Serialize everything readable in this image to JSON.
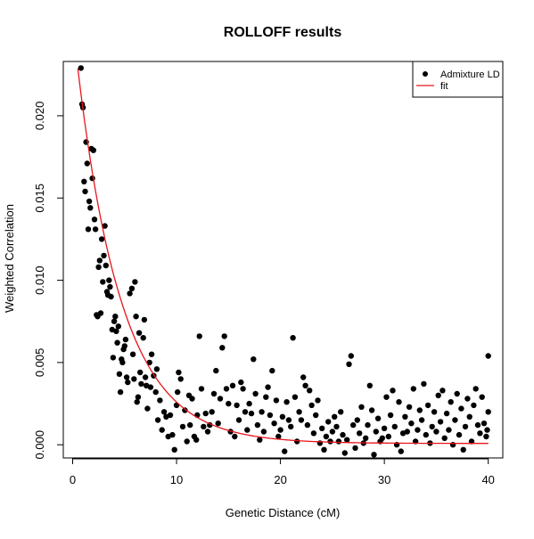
{
  "chart_data": {
    "type": "scatter",
    "title": "ROLLOFF results",
    "xlabel": "Genetic Distance (cM)",
    "ylabel": "Weighted Correlation",
    "xlim": [
      -0.9,
      41.4
    ],
    "ylim": [
      -0.0008,
      0.0233
    ],
    "x_ticks": [
      "0",
      "10",
      "20",
      "30",
      "40"
    ],
    "x_tick_values": [
      0,
      10,
      20,
      30,
      40
    ],
    "y_ticks": [
      "0.000",
      "0.005",
      "0.010",
      "0.015",
      "0.020"
    ],
    "y_tick_values": [
      0,
      0.005,
      0.01,
      0.015,
      0.02
    ],
    "grid": false,
    "legend_position": "top-right",
    "legend": [
      {
        "label": "Admixture LD",
        "marker": "point",
        "color": "#000000"
      },
      {
        "label": "fit",
        "marker": "line",
        "color": "#e8151b"
      }
    ],
    "fit": {
      "name": "fit",
      "color": "#e8151b",
      "model": "A*exp(-n*x/100)+c",
      "A": 0.0256,
      "n": 23.2,
      "c": 8e-05
    },
    "series": [
      {
        "name": "Admixture LD",
        "color": "#000000",
        "points": [
          [
            0.8,
            0.0229
          ],
          [
            0.9,
            0.0207
          ],
          [
            1.0,
            0.0205
          ],
          [
            1.1,
            0.016
          ],
          [
            1.2,
            0.0154
          ],
          [
            1.3,
            0.0184
          ],
          [
            1.4,
            0.0171
          ],
          [
            1.5,
            0.0131
          ],
          [
            1.6,
            0.0148
          ],
          [
            1.7,
            0.0144
          ],
          [
            1.8,
            0.018
          ],
          [
            1.9,
            0.0162
          ],
          [
            2.0,
            0.0179
          ],
          [
            2.1,
            0.0137
          ],
          [
            2.2,
            0.0131
          ],
          [
            2.3,
            0.0079
          ],
          [
            2.4,
            0.0078
          ],
          [
            2.5,
            0.0108
          ],
          [
            2.6,
            0.0112
          ],
          [
            2.7,
            0.008
          ],
          [
            2.8,
            0.0125
          ],
          [
            2.9,
            0.0099
          ],
          [
            3.0,
            0.0115
          ],
          [
            3.1,
            0.0133
          ],
          [
            3.2,
            0.0109
          ],
          [
            3.3,
            0.0093
          ],
          [
            3.4,
            0.0091
          ],
          [
            3.5,
            0.01
          ],
          [
            3.6,
            0.0096
          ],
          [
            3.7,
            0.009
          ],
          [
            3.8,
            0.007
          ],
          [
            3.9,
            0.0053
          ],
          [
            4.0,
            0.0075
          ],
          [
            4.1,
            0.0078
          ],
          [
            4.2,
            0.0069
          ],
          [
            4.3,
            0.0062
          ],
          [
            4.4,
            0.0072
          ],
          [
            4.5,
            0.0043
          ],
          [
            4.6,
            0.0032
          ],
          [
            4.7,
            0.0052
          ],
          [
            4.8,
            0.005
          ],
          [
            4.9,
            0.0058
          ],
          [
            5.0,
            0.006
          ],
          [
            5.1,
            0.0064
          ],
          [
            5.2,
            0.0041
          ],
          [
            5.3,
            0.0038
          ],
          [
            5.5,
            0.0092
          ],
          [
            5.7,
            0.0095
          ],
          [
            5.8,
            0.0055
          ],
          [
            5.9,
            0.004
          ],
          [
            6.0,
            0.0099
          ],
          [
            6.1,
            0.0078
          ],
          [
            6.2,
            0.0026
          ],
          [
            6.3,
            0.0029
          ],
          [
            6.4,
            0.0068
          ],
          [
            6.5,
            0.0044
          ],
          [
            6.6,
            0.0037
          ],
          [
            6.8,
            0.0065
          ],
          [
            6.9,
            0.0076
          ],
          [
            7.0,
            0.0041
          ],
          [
            7.1,
            0.0036
          ],
          [
            7.2,
            0.0022
          ],
          [
            7.4,
            0.005
          ],
          [
            7.5,
            0.0035
          ],
          [
            7.6,
            0.0055
          ],
          [
            7.8,
            0.0042
          ],
          [
            8.0,
            0.0032
          ],
          [
            8.1,
            0.0046
          ],
          [
            8.2,
            0.0015
          ],
          [
            8.4,
            0.0027
          ],
          [
            8.6,
            0.0009
          ],
          [
            8.8,
            0.002
          ],
          [
            9.0,
            0.0017
          ],
          [
            9.2,
            0.0005
          ],
          [
            9.4,
            0.0018
          ],
          [
            9.6,
            0.0006
          ],
          [
            9.8,
            -0.0003
          ],
          [
            10.0,
            0.0024
          ],
          [
            10.1,
            0.0032
          ],
          [
            10.2,
            0.0044
          ],
          [
            10.4,
            0.004
          ],
          [
            10.6,
            0.0011
          ],
          [
            10.8,
            0.0021
          ],
          [
            11.0,
            0.0002
          ],
          [
            11.2,
            0.003
          ],
          [
            11.3,
            0.0012
          ],
          [
            11.5,
            0.0028
          ],
          [
            11.7,
            0.0005
          ],
          [
            11.9,
            0.0003
          ],
          [
            12.0,
            0.0018
          ],
          [
            12.2,
            0.0066
          ],
          [
            12.4,
            0.0034
          ],
          [
            12.6,
            0.0011
          ],
          [
            12.8,
            0.0019
          ],
          [
            13.0,
            0.0008
          ],
          [
            13.2,
            0.0012
          ],
          [
            13.4,
            0.002
          ],
          [
            13.6,
            0.0031
          ],
          [
            13.8,
            0.0045
          ],
          [
            14.0,
            0.0013
          ],
          [
            14.2,
            0.0028
          ],
          [
            14.4,
            0.0059
          ],
          [
            14.6,
            0.0066
          ],
          [
            14.8,
            0.0034
          ],
          [
            15.0,
            0.0025
          ],
          [
            15.2,
            0.0008
          ],
          [
            15.4,
            0.0036
          ],
          [
            15.6,
            0.0005
          ],
          [
            15.8,
            0.0024
          ],
          [
            16.0,
            0.0015
          ],
          [
            16.2,
            0.0038
          ],
          [
            16.4,
            0.0034
          ],
          [
            16.6,
            0.002
          ],
          [
            16.8,
            0.0009
          ],
          [
            17.0,
            0.0025
          ],
          [
            17.2,
            0.0019
          ],
          [
            17.4,
            0.0052
          ],
          [
            17.6,
            0.0031
          ],
          [
            17.8,
            0.0012
          ],
          [
            18.0,
            0.0003
          ],
          [
            18.2,
            0.002
          ],
          [
            18.4,
            0.0008
          ],
          [
            18.6,
            0.0029
          ],
          [
            18.8,
            0.0035
          ],
          [
            19.0,
            0.0018
          ],
          [
            19.2,
            0.0045
          ],
          [
            19.4,
            0.0013
          ],
          [
            19.6,
            0.0027
          ],
          [
            19.8,
            0.0005
          ],
          [
            20.0,
            0.0009
          ],
          [
            20.2,
            0.0017
          ],
          [
            20.4,
            -0.0004
          ],
          [
            20.6,
            0.0026
          ],
          [
            20.8,
            0.0015
          ],
          [
            21.0,
            0.0011
          ],
          [
            21.2,
            0.0065
          ],
          [
            21.4,
            0.0029
          ],
          [
            21.6,
            0.0002
          ],
          [
            21.8,
            0.002
          ],
          [
            22.0,
            0.0015
          ],
          [
            22.2,
            0.0041
          ],
          [
            22.4,
            0.0036
          ],
          [
            22.6,
            0.0012
          ],
          [
            22.8,
            0.0033
          ],
          [
            23.0,
            0.0024
          ],
          [
            23.2,
            0.0007
          ],
          [
            23.4,
            0.0018
          ],
          [
            23.6,
            0.0027
          ],
          [
            23.8,
            0.0001
          ],
          [
            24.0,
            0.001
          ],
          [
            24.2,
            -0.0003
          ],
          [
            24.4,
            0.0005
          ],
          [
            24.6,
            0.0014
          ],
          [
            24.8,
            0.0002
          ],
          [
            25.0,
            0.0008
          ],
          [
            25.2,
            0.0017
          ],
          [
            25.4,
            0.0011
          ],
          [
            25.6,
            0.0002
          ],
          [
            25.8,
            0.002
          ],
          [
            26.0,
            0.0006
          ],
          [
            26.2,
            -0.0005
          ],
          [
            26.4,
            0.0003
          ],
          [
            26.6,
            0.0049
          ],
          [
            26.8,
            0.0054
          ],
          [
            27.0,
            0.0012
          ],
          [
            27.2,
            -0.0002
          ],
          [
            27.4,
            0.0015
          ],
          [
            27.6,
            0.0007
          ],
          [
            27.8,
            0.0023
          ],
          [
            28.0,
            0.0001
          ],
          [
            28.2,
            0.0004
          ],
          [
            28.4,
            0.0012
          ],
          [
            28.6,
            0.0036
          ],
          [
            28.8,
            0.0021
          ],
          [
            29.0,
            -0.0006
          ],
          [
            29.2,
            0.0008
          ],
          [
            29.4,
            0.0016
          ],
          [
            29.6,
            0.0002
          ],
          [
            29.8,
            0.0004
          ],
          [
            30.0,
            0.001
          ],
          [
            30.2,
            0.0029
          ],
          [
            30.4,
            0.0005
          ],
          [
            30.6,
            0.0018
          ],
          [
            30.8,
            0.0033
          ],
          [
            31.0,
            0.0011
          ],
          [
            31.2,
            0.0
          ],
          [
            31.4,
            0.0026
          ],
          [
            31.6,
            -0.0004
          ],
          [
            31.8,
            0.0007
          ],
          [
            32.0,
            0.0017
          ],
          [
            32.2,
            0.0008
          ],
          [
            32.4,
            0.0023
          ],
          [
            32.6,
            0.0013
          ],
          [
            32.8,
            0.0034
          ],
          [
            33.0,
            0.0002
          ],
          [
            33.2,
            0.0009
          ],
          [
            33.4,
            0.0021
          ],
          [
            33.6,
            0.0015
          ],
          [
            33.8,
            0.0037
          ],
          [
            34.0,
            0.0006
          ],
          [
            34.2,
            0.0024
          ],
          [
            34.4,
            0.0001
          ],
          [
            34.6,
            0.0011
          ],
          [
            34.8,
            0.002
          ],
          [
            35.0,
            0.0008
          ],
          [
            35.2,
            0.003
          ],
          [
            35.4,
            0.0014
          ],
          [
            35.6,
            0.0033
          ],
          [
            35.8,
            0.0004
          ],
          [
            36.0,
            0.0019
          ],
          [
            36.2,
            0.0009
          ],
          [
            36.4,
            0.0026
          ],
          [
            36.6,
            0.0
          ],
          [
            36.8,
            0.0015
          ],
          [
            37.0,
            0.0031
          ],
          [
            37.2,
            0.0006
          ],
          [
            37.4,
            0.0022
          ],
          [
            37.6,
            -0.0003
          ],
          [
            37.8,
            0.0011
          ],
          [
            38.0,
            0.0028
          ],
          [
            38.2,
            0.0017
          ],
          [
            38.4,
            0.0002
          ],
          [
            38.6,
            0.0024
          ],
          [
            38.8,
            0.0034
          ],
          [
            39.0,
            0.0012
          ],
          [
            39.2,
            0.0007
          ],
          [
            39.4,
            0.0029
          ],
          [
            39.6,
            0.0013
          ],
          [
            39.8,
            0.0005
          ],
          [
            40.0,
            0.0054
          ],
          [
            40.0,
            0.002
          ],
          [
            39.9,
            0.0009
          ]
        ]
      }
    ]
  }
}
